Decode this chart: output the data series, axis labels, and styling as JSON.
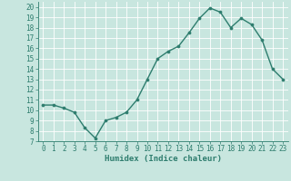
{
  "x": [
    0,
    1,
    2,
    3,
    4,
    5,
    6,
    7,
    8,
    9,
    10,
    11,
    12,
    13,
    14,
    15,
    16,
    17,
    18,
    19,
    20,
    21,
    22,
    23
  ],
  "y": [
    10.5,
    10.5,
    10.2,
    9.8,
    8.3,
    7.3,
    9.0,
    9.3,
    9.8,
    11.0,
    13.0,
    15.0,
    15.7,
    16.2,
    17.5,
    18.9,
    19.9,
    19.5,
    18.0,
    18.9,
    18.3,
    16.8,
    14.0,
    13.0
  ],
  "line_color": "#2e7d6e",
  "marker": "o",
  "marker_size": 2.2,
  "line_width": 1.0,
  "bg_color": "#c8e6df",
  "grid_color": "#ffffff",
  "xlabel": "Humidex (Indice chaleur)",
  "xlim": [
    -0.5,
    23.5
  ],
  "ylim": [
    7,
    20.5
  ],
  "yticks": [
    7,
    8,
    9,
    10,
    11,
    12,
    13,
    14,
    15,
    16,
    17,
    18,
    19,
    20
  ],
  "xticks": [
    0,
    1,
    2,
    3,
    4,
    5,
    6,
    7,
    8,
    9,
    10,
    11,
    12,
    13,
    14,
    15,
    16,
    17,
    18,
    19,
    20,
    21,
    22,
    23
  ],
  "tick_color": "#2e7d6e",
  "label_fontsize": 5.5,
  "xlabel_fontsize": 6.5,
  "axis_color": "#2e7d6e"
}
